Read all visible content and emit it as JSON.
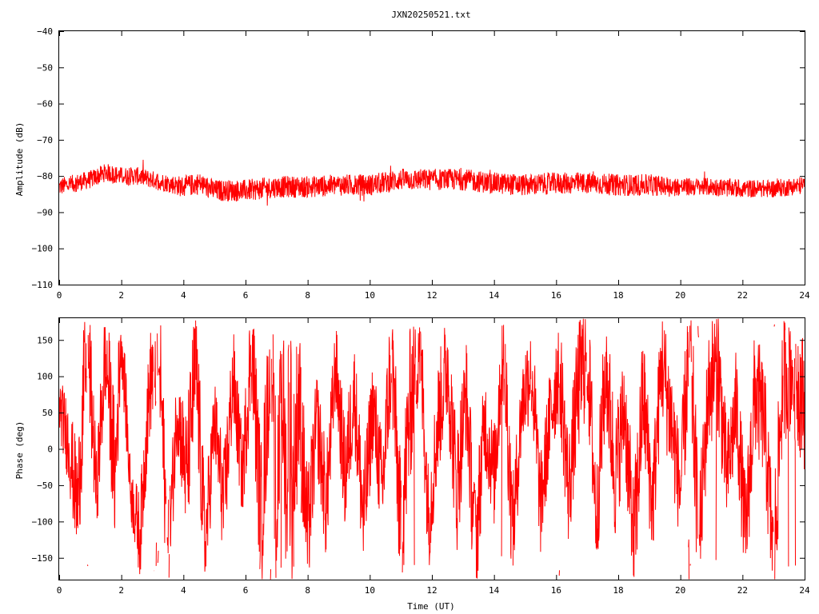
{
  "title": "JXN20250521.txt",
  "colors": {
    "trace": "#ff0000",
    "frame": "#000000",
    "background": "#ffffff"
  },
  "chart_data": [
    {
      "type": "line",
      "name": "amplitude",
      "ylabel": "Amplitude (dB)",
      "xlabel": "",
      "xlim": [
        0,
        24
      ],
      "ylim": [
        -110,
        -40
      ],
      "xticks": [
        "0",
        "2",
        "4",
        "6",
        "8",
        "10",
        "12",
        "14",
        "16",
        "18",
        "20",
        "22",
        "24"
      ],
      "yticks": [
        "-40",
        "-50",
        "-60",
        "-70",
        "-80",
        "-90",
        "-100",
        "-110"
      ],
      "grid": false,
      "series": [
        {
          "x": [
            0,
            0.5,
            1,
            1.5,
            2,
            2.5,
            3,
            3.5,
            4,
            4.5,
            5,
            5.5,
            6,
            7,
            8,
            9,
            10,
            11,
            12,
            13,
            14,
            15,
            16,
            17,
            18,
            19,
            20,
            21,
            22,
            23,
            24
          ],
          "center": [
            -83,
            -82,
            -81,
            -79,
            -80,
            -80,
            -81,
            -82,
            -83,
            -82,
            -84,
            -84,
            -84,
            -83,
            -83,
            -82.5,
            -82.5,
            -81,
            -81,
            -81,
            -82,
            -82.5,
            -82,
            -82,
            -82.5,
            -82.5,
            -83,
            -83,
            -83.5,
            -83.5,
            -82.5
          ],
          "spread": [
            2.5,
            2.5,
            2.5,
            2.5,
            2.5,
            2.5,
            2.5,
            2.5,
            3,
            3,
            3,
            3,
            3,
            3,
            3,
            3,
            3,
            3,
            3,
            3,
            3,
            3,
            3,
            3,
            3,
            3,
            2.5,
            2.5,
            2.5,
            2.5,
            2.5
          ]
        }
      ]
    },
    {
      "type": "line",
      "name": "phase",
      "ylabel": "Phase (deg)",
      "xlabel": "Time (UT)",
      "xlim": [
        0,
        24
      ],
      "ylim": [
        -180,
        180
      ],
      "xticks": [
        "0",
        "2",
        "4",
        "6",
        "8",
        "10",
        "12",
        "14",
        "16",
        "18",
        "20",
        "22",
        "24"
      ],
      "yticks": [
        "150",
        "100",
        "50",
        "0",
        "-50",
        "-100",
        "-150"
      ],
      "grid": false,
      "series": [
        {
          "x": [
            0,
            0.3,
            0.6,
            0.9,
            1.2,
            1.5,
            1.8,
            2.0,
            2.3,
            2.6,
            2.9,
            3.2,
            3.5,
            3.8,
            4.1,
            4.4,
            4.7,
            5.0,
            5.3,
            5.6,
            5.9,
            6.2,
            6.5,
            6.8,
            7.1,
            7.4,
            7.7,
            8.0,
            8.3,
            8.6,
            8.9,
            9.2,
            9.5,
            9.8,
            10.1,
            10.4,
            10.7,
            11.0,
            11.3,
            11.6,
            11.9,
            12.2,
            12.5,
            12.8,
            13.1,
            13.4,
            13.7,
            14.0,
            14.3,
            14.6,
            14.9,
            15.2,
            15.5,
            15.8,
            16.1,
            16.4,
            16.7,
            17.0,
            17.3,
            17.6,
            17.9,
            18.2,
            18.5,
            18.8,
            19.1,
            19.4,
            19.7,
            20.0,
            20.3,
            20.6,
            20.9,
            21.2,
            21.5,
            21.8,
            22.1,
            22.4,
            22.7,
            23.0,
            23.3,
            23.6,
            24.0
          ],
          "y": [
            60,
            10,
            -80,
            170,
            -60,
            140,
            -40,
            170,
            -60,
            -120,
            80,
            160,
            -160,
            60,
            -40,
            120,
            -140,
            40,
            -80,
            100,
            -40,
            150,
            -100,
            120,
            170,
            -160,
            80,
            -120,
            40,
            -80,
            120,
            -40,
            80,
            -100,
            60,
            -60,
            140,
            -120,
            60,
            160,
            -100,
            40,
            120,
            -60,
            80,
            -140,
            40,
            -40,
            160,
            -120,
            60,
            120,
            -80,
            40,
            120,
            -60,
            80,
            140,
            -100,
            120,
            -40,
            60,
            -140,
            80,
            -80,
            120,
            40,
            -60,
            160,
            -140,
            80,
            120,
            -40,
            60,
            -120,
            80,
            40,
            -160,
            100,
            120,
            60
          ],
          "spread": [
            40,
            60,
            80,
            100,
            60,
            80,
            100,
            60,
            40,
            60,
            70,
            100,
            80,
            60,
            90,
            100,
            80,
            60,
            80,
            70,
            60,
            90,
            110,
            90,
            130,
            130,
            120,
            90,
            70,
            80,
            60,
            80,
            70,
            90,
            70,
            80,
            90,
            100,
            110,
            90,
            70,
            80,
            80,
            90,
            80,
            90,
            70,
            70,
            100,
            80,
            60,
            80,
            70,
            70,
            80,
            80,
            90,
            90,
            80,
            90,
            90,
            80,
            100,
            90,
            80,
            80,
            90,
            70,
            110,
            90,
            80,
            100,
            70,
            80,
            80,
            90,
            80,
            100,
            90,
            100,
            90
          ]
        }
      ]
    }
  ]
}
